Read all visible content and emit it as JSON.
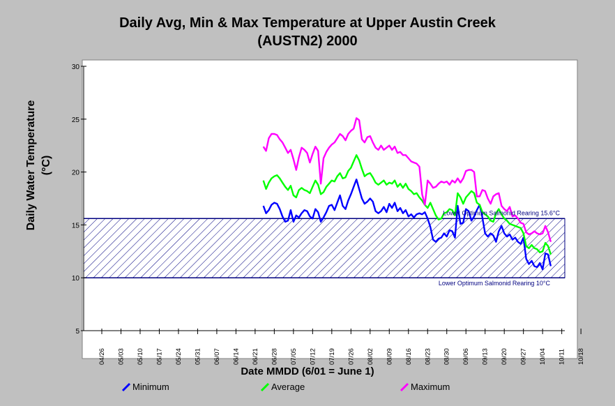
{
  "chart_data": {
    "type": "line",
    "title": "Daily Avg, Min & Max Temperature at Upper Austin Creek",
    "subtitle": "(AUSTN2) 2000",
    "xlabel": "Date MMDD (6/01 = June 1)",
    "ylabel": [
      "Daily Water Temperature",
      "(°C)"
    ],
    "ylim": [
      5,
      30
    ],
    "yticks": [
      5,
      10,
      15,
      20,
      25,
      30
    ],
    "xticks": [
      "04/26",
      "05/03",
      "05/10",
      "05/17",
      "05/24",
      "05/31",
      "06/07",
      "06/14",
      "06/21",
      "06/28",
      "07/05",
      "07/12",
      "07/19",
      "07/26",
      "08/02",
      "08/09",
      "08/16",
      "08/23",
      "08/30",
      "09/06",
      "09/13",
      "09/20",
      "09/27",
      "10/04",
      "10/11",
      "10/18"
    ],
    "x_start": "06/24",
    "band": {
      "low": 10,
      "high": 15.6,
      "upper_label": "Lower Optimum Salmonid Rearing 15.6°C",
      "lower_label": "Lower Optimum Salmonid Rearing 10°C"
    },
    "legend_position": "bottom",
    "colors": {
      "Minimum": "#0000ff",
      "Average": "#00ff00",
      "Maximum": "#ff00ff",
      "band": "#000080"
    },
    "series": [
      {
        "name": "Minimum",
        "values": [
          16.8,
          16.1,
          16.4,
          16.9,
          17.1,
          17.0,
          16.5,
          15.8,
          15.3,
          15.4,
          16.4,
          15.3,
          15.9,
          15.7,
          16.1,
          16.4,
          16.3,
          15.8,
          15.6,
          16.5,
          16.2,
          15.3,
          15.7,
          16.2,
          16.8,
          16.9,
          16.4,
          17.1,
          17.8,
          16.8,
          16.5,
          17.3,
          17.9,
          18.6,
          19.3,
          18.4,
          17.5,
          17.0,
          17.2,
          17.5,
          17.2,
          16.3,
          16.1,
          16.3,
          16.7,
          16.2,
          17.0,
          16.6,
          17.1,
          16.3,
          16.6,
          16.1,
          16.4,
          15.8,
          16.0,
          15.7,
          16.0,
          16.1,
          16.0,
          16.2,
          15.6,
          14.8,
          13.6,
          13.4,
          13.7,
          13.8,
          14.2,
          13.9,
          14.5,
          14.4,
          13.8,
          16.8,
          15.1,
          15.2,
          16.5,
          16.3,
          15.4,
          15.8,
          16.4,
          16.9,
          15.7,
          14.2,
          13.9,
          14.2,
          14.0,
          13.4,
          14.4,
          14.9,
          14.2,
          13.9,
          14.1,
          13.6,
          13.8,
          13.4,
          13.2,
          13.8,
          11.8,
          11.3,
          11.6,
          11.1,
          11.0,
          11.4,
          10.8,
          12.3,
          12.2,
          11.1
        ]
      },
      {
        "name": "Average",
        "values": [
          19.2,
          18.4,
          19.0,
          19.4,
          19.6,
          19.7,
          19.4,
          19.0,
          18.6,
          18.3,
          18.7,
          17.8,
          17.6,
          18.3,
          18.5,
          18.3,
          18.2,
          18.0,
          18.6,
          19.2,
          18.8,
          17.9,
          18.1,
          18.6,
          18.9,
          19.2,
          19.1,
          19.6,
          19.9,
          19.4,
          19.5,
          20.1,
          20.4,
          21.0,
          21.6,
          21.1,
          20.3,
          19.6,
          19.8,
          19.9,
          19.5,
          19.0,
          18.8,
          19.0,
          19.2,
          18.8,
          19.0,
          18.9,
          19.2,
          18.6,
          18.9,
          18.5,
          18.9,
          18.4,
          18.2,
          17.9,
          18.0,
          17.6,
          17.3,
          16.9,
          16.6,
          17.1,
          16.5,
          15.9,
          15.5,
          15.6,
          16.1,
          16.2,
          16.5,
          16.4,
          15.9,
          18.0,
          17.6,
          17.0,
          17.6,
          17.9,
          18.2,
          18.0,
          17.1,
          16.9,
          16.2,
          16.0,
          15.8,
          15.4,
          15.3,
          16.1,
          16.5,
          16.0,
          15.6,
          15.4,
          15.1,
          15.0,
          14.9,
          14.8,
          14.7,
          14.2,
          13.0,
          12.8,
          13.1,
          12.8,
          12.7,
          12.4,
          12.5,
          13.3,
          13.0,
          12.2
        ]
      },
      {
        "name": "Maximum",
        "values": [
          22.4,
          22.0,
          23.2,
          23.6,
          23.6,
          23.5,
          23.1,
          22.8,
          22.3,
          21.8,
          22.1,
          21.2,
          20.2,
          21.4,
          22.3,
          22.1,
          21.8,
          20.9,
          21.7,
          22.4,
          22.0,
          18.9,
          21.3,
          21.9,
          22.3,
          22.6,
          22.8,
          23.2,
          23.6,
          23.4,
          23.0,
          23.6,
          23.9,
          24.1,
          25.1,
          24.9,
          23.1,
          22.8,
          23.3,
          23.4,
          22.8,
          22.3,
          22.1,
          22.5,
          22.1,
          22.3,
          22.5,
          22.1,
          22.4,
          21.8,
          21.9,
          21.6,
          21.6,
          21.3,
          21.0,
          20.9,
          20.8,
          20.5,
          17.9,
          16.9,
          19.2,
          18.9,
          18.5,
          18.6,
          18.9,
          19.1,
          19.0,
          19.1,
          18.8,
          19.2,
          19.0,
          19.4,
          19.0,
          19.4,
          20.1,
          20.2,
          20.2,
          20.0,
          17.7,
          17.7,
          18.3,
          18.2,
          17.5,
          17.0,
          17.7,
          17.9,
          18.0,
          16.8,
          16.5,
          16.3,
          16.7,
          15.8,
          15.9,
          15.6,
          15.2,
          15.1,
          14.3,
          14.1,
          14.2,
          14.4,
          14.2,
          14.1,
          14.2,
          14.9,
          14.3,
          13.4
        ]
      }
    ]
  }
}
